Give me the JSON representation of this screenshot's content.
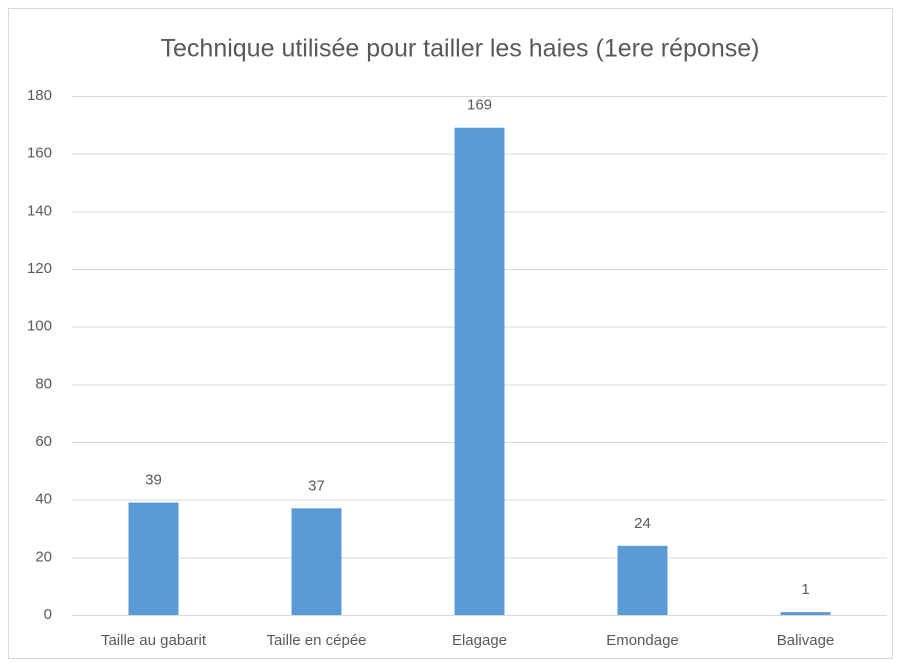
{
  "chart_data": {
    "type": "bar",
    "title": "Technique utilisée pour tailler les haies (1ere réponse)",
    "categories": [
      "Taille au gabarit",
      "Taille en cépée",
      "Elagage",
      "Emondage",
      "Balivage"
    ],
    "values": [
      39,
      37,
      169,
      24,
      1
    ],
    "color": "#5b9bd5",
    "ylim": [
      0,
      180
    ],
    "yticks": [
      0,
      20,
      40,
      60,
      80,
      100,
      120,
      140,
      160,
      180
    ],
    "grid": true
  }
}
